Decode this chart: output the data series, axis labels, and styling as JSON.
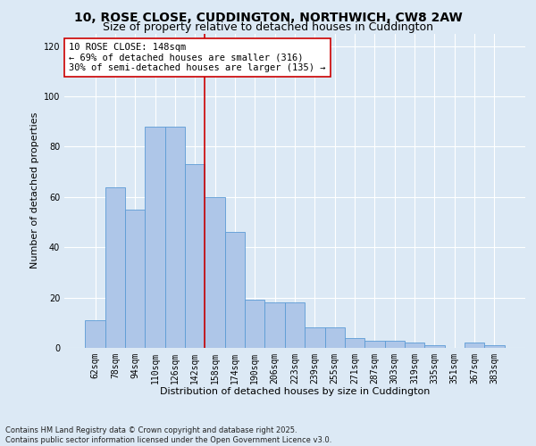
{
  "title_line1": "10, ROSE CLOSE, CUDDINGTON, NORTHWICH, CW8 2AW",
  "title_line2": "Size of property relative to detached houses in Cuddington",
  "xlabel": "Distribution of detached houses by size in Cuddington",
  "ylabel": "Number of detached properties",
  "categories": [
    "62sqm",
    "78sqm",
    "94sqm",
    "110sqm",
    "126sqm",
    "142sqm",
    "158sqm",
    "174sqm",
    "190sqm",
    "206sqm",
    "223sqm",
    "239sqm",
    "255sqm",
    "271sqm",
    "287sqm",
    "303sqm",
    "319sqm",
    "335sqm",
    "351sqm",
    "367sqm",
    "383sqm"
  ],
  "values": [
    11,
    64,
    55,
    88,
    88,
    73,
    60,
    46,
    19,
    18,
    18,
    8,
    8,
    4,
    3,
    3,
    2,
    1,
    0,
    2,
    1
  ],
  "bar_color": "#aec6e8",
  "bar_edge_color": "#5b9bd5",
  "vline_x": 5.5,
  "vline_color": "#cc0000",
  "annotation_text": "10 ROSE CLOSE: 148sqm\n← 69% of detached houses are smaller (316)\n30% of semi-detached houses are larger (135) →",
  "annotation_box_color": "#ffffff",
  "annotation_box_edge": "#cc0000",
  "background_color": "#dce9f5",
  "plot_bg_color": "#dce9f5",
  "ylim": [
    0,
    125
  ],
  "yticks": [
    0,
    20,
    40,
    60,
    80,
    100,
    120
  ],
  "footnote": "Contains HM Land Registry data © Crown copyright and database right 2025.\nContains public sector information licensed under the Open Government Licence v3.0.",
  "title_fontsize": 10,
  "subtitle_fontsize": 9,
  "axis_label_fontsize": 8,
  "tick_fontsize": 7,
  "annot_fontsize": 7.5,
  "footnote_fontsize": 6
}
